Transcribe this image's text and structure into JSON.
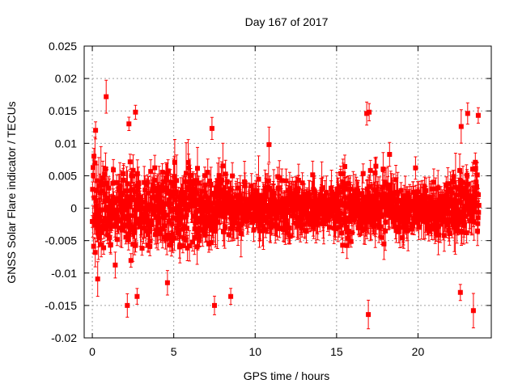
{
  "chart_data": {
    "type": "scatter",
    "title": "Day 167 of 2017",
    "xlabel": "GPS time / hours",
    "ylabel": "GNSS Solar Flare indicator / TECUs",
    "xlim": [
      -0.5,
      24.5
    ],
    "ylim": [
      -0.02,
      0.025
    ],
    "xticks": [
      0,
      5,
      10,
      15,
      20
    ],
    "xtick_labels": [
      "0",
      "5",
      "10",
      "15",
      "20"
    ],
    "yticks": [
      -0.02,
      -0.015,
      -0.01,
      -0.005,
      0,
      0.005,
      0.01,
      0.015,
      0.02,
      0.025
    ],
    "ytick_labels": [
      "-0.02",
      "-0.015",
      "-0.01",
      "-0.005",
      "0",
      "0.005",
      "0.01",
      "0.015",
      "0.02",
      "0.025"
    ],
    "grid": true,
    "marker": "filled-square",
    "error_bars": true,
    "series_color": "#ff0000",
    "noise_profile": {
      "x_start": 0.0,
      "x_end": 23.75,
      "sample_step_hours": 0.0083,
      "spread_envelope": [
        {
          "x": 0.0,
          "sd": 0.0052
        },
        {
          "x": 4.0,
          "sd": 0.005
        },
        {
          "x": 8.0,
          "sd": 0.0042
        },
        {
          "x": 9.0,
          "sd": 0.003
        },
        {
          "x": 12.0,
          "sd": 0.0027
        },
        {
          "x": 14.0,
          "sd": 0.0034
        },
        {
          "x": 17.5,
          "sd": 0.0036
        },
        {
          "x": 19.0,
          "sd": 0.0026
        },
        {
          "x": 21.5,
          "sd": 0.0026
        },
        {
          "x": 22.5,
          "sd": 0.004
        },
        {
          "x": 23.75,
          "sd": 0.005
        }
      ],
      "errorbar_half_length_sd": 0.0022
    },
    "outliers": [
      {
        "x": 0.85,
        "y": 0.0172
      },
      {
        "x": 0.2,
        "y": 0.012
      },
      {
        "x": 2.25,
        "y": 0.013
      },
      {
        "x": 2.65,
        "y": 0.0148
      },
      {
        "x": 7.35,
        "y": 0.0123
      },
      {
        "x": 10.85,
        "y": 0.0098
      },
      {
        "x": 16.85,
        "y": 0.0146
      },
      {
        "x": 17.0,
        "y": 0.0148
      },
      {
        "x": 16.95,
        "y": -0.0164
      },
      {
        "x": 2.15,
        "y": -0.015
      },
      {
        "x": 7.5,
        "y": -0.015
      },
      {
        "x": 8.5,
        "y": -0.0136
      },
      {
        "x": 2.75,
        "y": -0.0136
      },
      {
        "x": 22.65,
        "y": 0.0126
      },
      {
        "x": 23.05,
        "y": 0.0146
      },
      {
        "x": 23.7,
        "y": 0.0143
      },
      {
        "x": 22.6,
        "y": -0.013
      },
      {
        "x": 23.4,
        "y": -0.0158
      },
      {
        "x": 18.25,
        "y": 0.0083
      },
      {
        "x": 19.85,
        "y": 0.0062
      }
    ]
  }
}
